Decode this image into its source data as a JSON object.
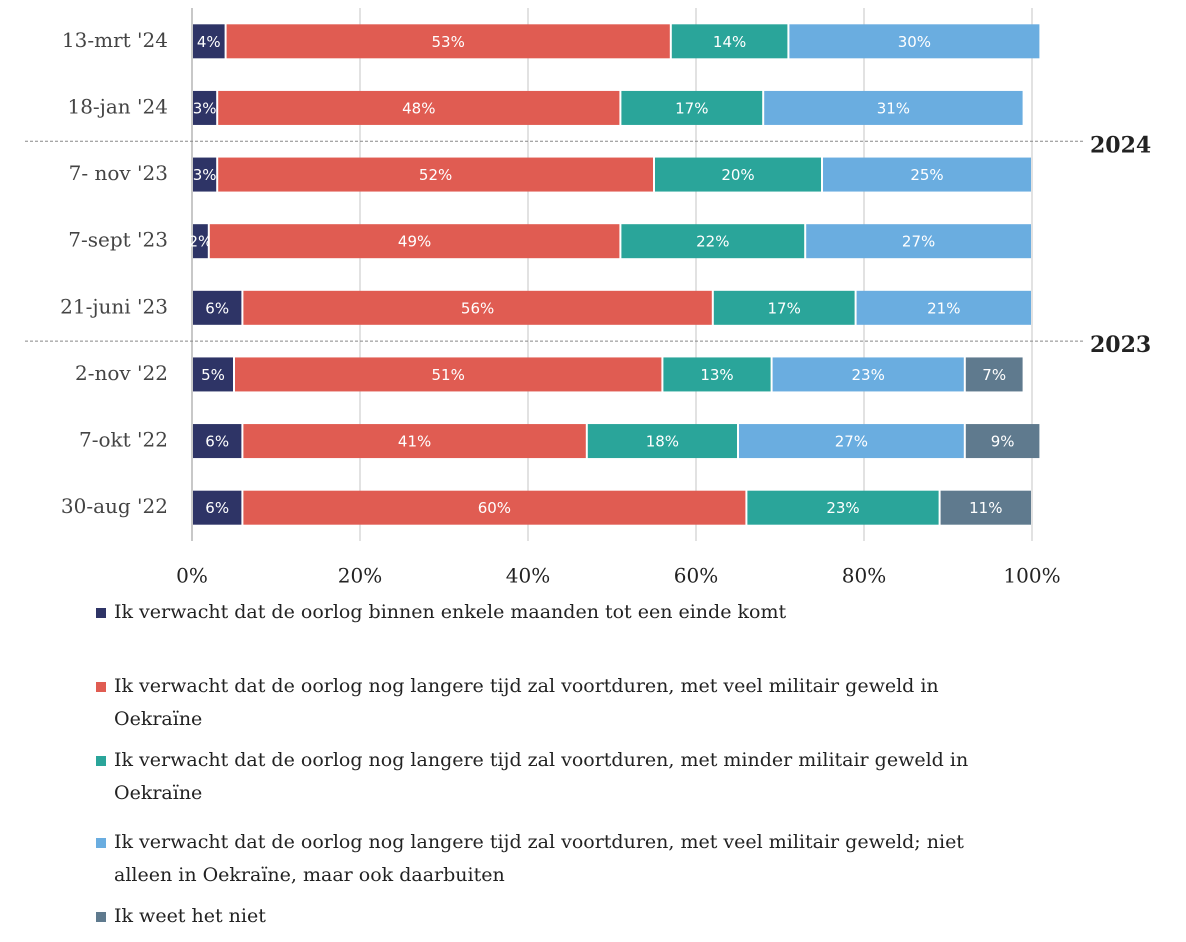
{
  "chart_data": {
    "type": "stacked-bar-horizontal",
    "categories": [
      "13-mrt '24",
      "18-jan '24",
      "7- nov '23",
      "7-sept '23",
      "21-juni '23",
      "2-nov '22",
      "7-okt '22",
      "30-aug '22"
    ],
    "series": [
      {
        "name": "Ik verwacht dat de oorlog binnen enkele maanden tot een einde komt",
        "color": "#2e3466",
        "values": [
          4,
          3,
          3,
          2,
          6,
          5,
          6,
          6
        ],
        "value_labels": [
          "4%",
          "3%",
          "3%",
          "2%",
          "6%",
          "5%",
          "6%",
          "6%"
        ]
      },
      {
        "name": "Ik verwacht dat de oorlog nog langere tijd zal voortduren, met veel militair geweld in Oekraïne",
        "color": "#e05c52",
        "values": [
          53,
          48,
          52,
          49,
          56,
          51,
          41,
          60
        ],
        "value_labels": [
          "53%",
          "48%",
          "52%",
          "49%",
          "56%",
          "51%",
          "41%",
          "60%"
        ]
      },
      {
        "name": "Ik verwacht dat de oorlog nog langere tijd zal voortduren, met minder militair geweld in Oekraïne",
        "color": "#2aa59a",
        "values": [
          14,
          17,
          20,
          22,
          17,
          13,
          18,
          23
        ],
        "value_labels": [
          "14%",
          "17%",
          "20%",
          "22%",
          "17%",
          "13%",
          "18%",
          "23%"
        ]
      },
      {
        "name": "Ik verwacht dat de oorlog nog langere tijd zal voortduren, met veel militair geweld; niet alleen in Oekraïne, maar ook daarbuiten",
        "color": "#6aade0",
        "values": [
          30,
          31,
          25,
          27,
          21,
          23,
          27,
          null
        ],
        "value_labels": [
          "30%",
          "31%",
          "25%",
          "27%",
          "21%",
          "23%",
          "27%",
          null
        ]
      },
      {
        "name": "Ik weet het niet",
        "color": "#5f7a8e",
        "values": [
          null,
          null,
          null,
          null,
          null,
          7,
          9,
          11
        ],
        "value_labels": [
          null,
          null,
          null,
          null,
          null,
          "7%",
          "9%",
          "11%"
        ]
      }
    ],
    "xlim": [
      0,
      100
    ],
    "xticks": [
      {
        "value": 0,
        "label": "0%"
      },
      {
        "value": 20,
        "label": "20%"
      },
      {
        "value": 40,
        "label": "40%"
      },
      {
        "value": 60,
        "label": "60%"
      },
      {
        "value": 80,
        "label": "80%"
      },
      {
        "value": 100,
        "label": "100%"
      }
    ],
    "grid": true,
    "annotations": [
      "2024",
      "2023"
    ]
  }
}
